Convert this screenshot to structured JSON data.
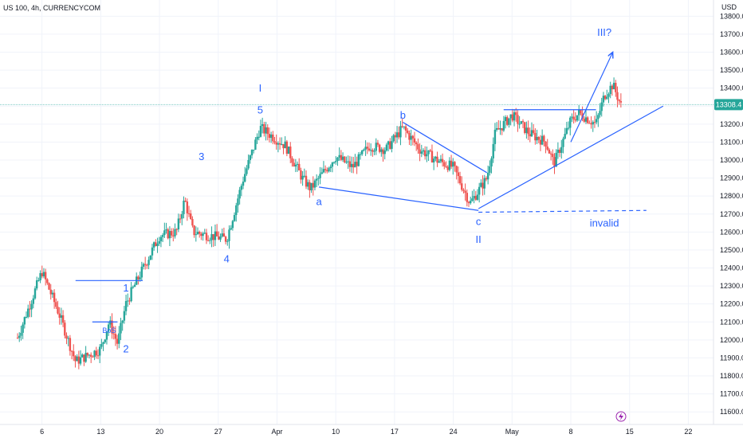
{
  "header": {
    "symbol_label": "US 100, 4h, CURRENCYCOM",
    "currency": "USD"
  },
  "colors": {
    "up": "#26a69a",
    "down": "#ef5350",
    "annotation": "#2962ff",
    "price_line": "#26a69a",
    "badge_bg": "#26a69a"
  },
  "chart_data": {
    "type": "candlestick",
    "x_ticks": [
      "6",
      "13",
      "20",
      "27",
      "Apr",
      "10",
      "17",
      "24",
      "May",
      "8",
      "15",
      "22"
    ],
    "y_ticks": [
      13800.0,
      13700.0,
      13600.0,
      13500.0,
      13400.0,
      13300.0,
      13200.0,
      13100.0,
      13000.0,
      12900.0,
      12800.0,
      12700.0,
      12600.0,
      12500.0,
      12400.0,
      12300.0,
      12200.0,
      12100.0,
      12000.0,
      11900.0,
      11800.0,
      11700.0,
      11600.0
    ],
    "y_tick_labels": [
      "13800.0",
      "13700.0",
      "13600.0",
      "13500.0",
      "13400.0",
      "13300.0",
      "13200.0",
      "13100.0",
      "13000.0",
      "12900.0",
      "12800.0",
      "12700.0",
      "12600.0",
      "12500.0",
      "12400.0",
      "12300.0",
      "12200.0",
      "12100.0",
      "12000.0",
      "11900.0",
      "11800.0",
      "11700.0",
      "11600.0"
    ],
    "ylim": [
      11530,
      13890
    ],
    "current_price": 13308.4,
    "current_price_label": "13308.4",
    "price_path": [
      {
        "date": "2023-03-03",
        "price": 12000
      },
      {
        "date": "2023-03-06",
        "price": 12380
      },
      {
        "date": "2023-03-08",
        "price": 12150
      },
      {
        "date": "2023-03-10",
        "price": 11880
      },
      {
        "date": "2023-03-13",
        "price": 11950
      },
      {
        "date": "2023-03-14",
        "price": 12100
      },
      {
        "date": "2023-03-15",
        "price": 11980
      },
      {
        "date": "2023-03-16",
        "price": 12200
      },
      {
        "date": "2023-03-17",
        "price": 12300
      },
      {
        "date": "2023-03-20",
        "price": 12580
      },
      {
        "date": "2023-03-22",
        "price": 12600
      },
      {
        "date": "2023-03-23",
        "price": 12780
      },
      {
        "date": "2023-03-24",
        "price": 12600
      },
      {
        "date": "2023-03-28",
        "price": 12560
      },
      {
        "date": "2023-03-30",
        "price": 12900
      },
      {
        "date": "2023-04-01",
        "price": 13180
      },
      {
        "date": "2023-04-04",
        "price": 13080
      },
      {
        "date": "2023-04-06",
        "price": 12900
      },
      {
        "date": "2023-04-07",
        "price": 12840
      },
      {
        "date": "2023-04-10",
        "price": 13020
      },
      {
        "date": "2023-04-12",
        "price": 12960
      },
      {
        "date": "2023-04-14",
        "price": 13080
      },
      {
        "date": "2023-04-16",
        "price": 13060
      },
      {
        "date": "2023-04-18",
        "price": 13180
      },
      {
        "date": "2023-04-20",
        "price": 13060
      },
      {
        "date": "2023-04-22",
        "price": 13000
      },
      {
        "date": "2023-04-24",
        "price": 12960
      },
      {
        "date": "2023-04-26",
        "price": 12760
      },
      {
        "date": "2023-04-28",
        "price": 12900
      },
      {
        "date": "2023-04-29",
        "price": 13150
      },
      {
        "date": "2023-05-01",
        "price": 13250
      },
      {
        "date": "2023-05-03",
        "price": 13150
      },
      {
        "date": "2023-05-05",
        "price": 13100
      },
      {
        "date": "2023-05-06",
        "price": 12980
      },
      {
        "date": "2023-05-08",
        "price": 13220
      },
      {
        "date": "2023-05-09",
        "price": 13260
      },
      {
        "date": "2023-05-11",
        "price": 13200
      },
      {
        "date": "2023-05-12",
        "price": 13360
      },
      {
        "date": "2023-05-13",
        "price": 13420
      },
      {
        "date": "2023-05-14",
        "price": 13300
      }
    ],
    "wave_labels": [
      {
        "text": "1",
        "date": "2023-03-16",
        "price": 12270
      },
      {
        "text": "2",
        "date": "2023-03-16",
        "price": 11930
      },
      {
        "text": "BoS",
        "date": "2023-03-14",
        "price": 12040
      },
      {
        "text": "3",
        "date": "2023-03-25",
        "price": 13000
      },
      {
        "text": "4",
        "date": "2023-03-28",
        "price": 12430
      },
      {
        "text": "5",
        "date": "2023-04-01",
        "price": 13260
      },
      {
        "text": "I",
        "date": "2023-04-01",
        "price": 13380
      },
      {
        "text": "a",
        "date": "2023-04-08",
        "price": 12750
      },
      {
        "text": "b",
        "date": "2023-04-18",
        "price": 13230
      },
      {
        "text": "c",
        "date": "2023-04-27",
        "price": 12640
      },
      {
        "text": "II",
        "date": "2023-04-27",
        "price": 12540
      },
      {
        "text": "III?",
        "date": "2023-05-12",
        "price": 13690
      },
      {
        "text": "invalid",
        "date": "2023-05-12",
        "price": 12630
      }
    ],
    "drawn_lines": [
      {
        "name": "bos-level-line-upper",
        "from": {
          "date": "2023-03-10",
          "price": 12330
        },
        "to": {
          "date": "2023-03-18",
          "price": 12330
        }
      },
      {
        "name": "bos-level-line-lower",
        "from": {
          "date": "2023-03-12",
          "price": 12100
        },
        "to": {
          "date": "2023-03-15",
          "price": 12100
        }
      },
      {
        "name": "wave-a-c-trendline",
        "from": {
          "date": "2023-04-08",
          "price": 12850
        },
        "to": {
          "date": "2023-04-27",
          "price": 12720
        }
      },
      {
        "name": "wave-b-c-trendline",
        "from": {
          "date": "2023-04-18",
          "price": 13210
        },
        "to": {
          "date": "2023-04-28",
          "price": 12930
        }
      },
      {
        "name": "support-trendline",
        "from": {
          "date": "2023-04-27",
          "price": 12730
        },
        "to": {
          "date": "2023-05-19",
          "price": 13300
        }
      },
      {
        "name": "resistance-line",
        "from": {
          "date": "2023-04-30",
          "price": 13280
        },
        "to": {
          "date": "2023-05-11",
          "price": 13280
        }
      },
      {
        "name": "invalidation-dashed-line",
        "from": {
          "date": "2023-04-27",
          "price": 12710
        },
        "to": {
          "date": "2023-05-17",
          "price": 12720
        }
      },
      {
        "name": "wave-iii-projection-arrow",
        "from": {
          "date": "2023-05-08",
          "price": 13100
        },
        "to": {
          "date": "2023-05-13",
          "price": 13600
        }
      }
    ]
  }
}
